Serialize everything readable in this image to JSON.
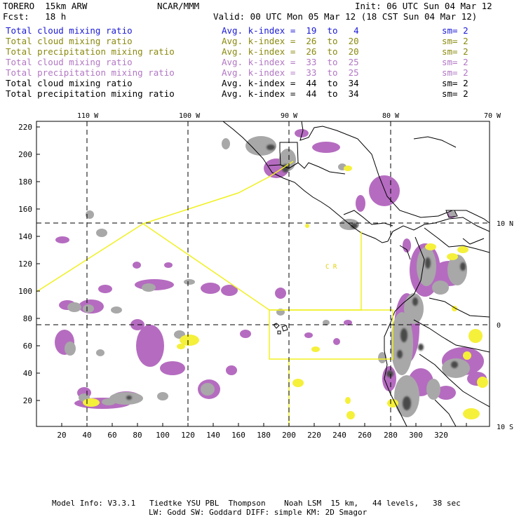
{
  "header": {
    "model": "TORERO  15km ARW",
    "org": "NCAR/MMM",
    "init": "Init: 06 UTC Sun 04 Mar 12",
    "fcst": "Fcst:   18 h",
    "valid": "Valid: 00 UTC Mon 05 Mar 12 (18 CST Sun 04 Mar 12)"
  },
  "legend": [
    {
      "field": "Total cloud mixing ratio",
      "kindex": "Avg. k-index =  19  to   4",
      "sm": "sm= 2",
      "color": "#1a1ad6",
      "cls": "blue"
    },
    {
      "field": "Total cloud mixing ratio",
      "kindex": "Avg. k-index =  26  to  20",
      "sm": "sm= 2",
      "color": "#8a8a10",
      "cls": "olive"
    },
    {
      "field": "Total precipitation mixing ratio",
      "kindex": "Avg. k-index =  26  to  20",
      "sm": "sm= 2",
      "color": "#8a8a10",
      "cls": "olive"
    },
    {
      "field": "Total cloud mixing ratio",
      "kindex": "Avg. k-index =  33  to  25",
      "sm": "sm= 2",
      "color": "#b277c4",
      "cls": "lav"
    },
    {
      "field": "Total precipitation mixing ratio",
      "kindex": "Avg. k-index =  33  to  25",
      "sm": "sm= 2",
      "color": "#b277c4",
      "cls": "lav"
    },
    {
      "field": "Total cloud mixing ratio",
      "kindex": "Avg. k-index =  44  to  34",
      "sm": "sm= 2",
      "color": "#000000",
      "cls": "blk"
    },
    {
      "field": "Total precipitation mixing ratio",
      "kindex": "Avg. k-index =  44  to  34",
      "sm": "sm= 2",
      "color": "#000000",
      "cls": "blk"
    }
  ],
  "map": {
    "lon_labels": [
      "110 W",
      "100 W",
      "90 W",
      "80 W",
      "70 W"
    ],
    "lat_labels": [
      "10 N",
      "0",
      "10 S"
    ],
    "x_ticks": [
      "20",
      "40",
      "60",
      "80",
      "100",
      "120",
      "140",
      "160",
      "180",
      "200",
      "220",
      "240",
      "260",
      "280",
      "300",
      "320"
    ],
    "y_ticks": [
      "220",
      "200",
      "180",
      "160",
      "140",
      "120",
      "100",
      "80",
      "60",
      "40",
      "20"
    ],
    "region_label": "C  R",
    "colors": {
      "gray": "#a8a8a8",
      "dark_gray": "#4a4a4a",
      "lavender": "#b56cc0",
      "yellow": "#f5f03a",
      "boundary_yellow": "#f0f020"
    }
  },
  "footer": {
    "line1": "Model Info: V3.3.1   Tiedtke YSU PBL  Thompson    Noah LSM  15 km,   44 levels,   38 sec",
    "line2": "LW: Godd SW: Goddard DIFF: simple KM: 2D Smagor"
  }
}
